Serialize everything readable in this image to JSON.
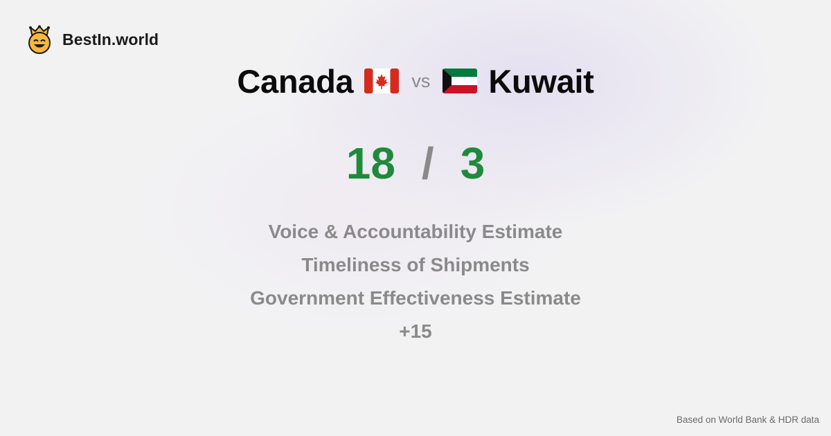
{
  "brand": {
    "name": "BestIn.world",
    "icon": "crown-smiley-icon"
  },
  "comparison": {
    "left_country": "Canada",
    "left_flag": "canada-flag-icon",
    "vs_label": "vs",
    "right_country": "Kuwait",
    "right_flag": "kuwait-flag-icon",
    "left_score": "18",
    "separator": "/",
    "right_score": "3"
  },
  "metrics": [
    "Voice & Accountability Estimate",
    "Timeliness of Shipments",
    "Government Effectiveness Estimate",
    "+15"
  ],
  "footer": {
    "source": "Based on World Bank & HDR data"
  },
  "colors": {
    "score": "#1f8a3c",
    "muted": "#8a8a8a",
    "title": "#0b0b0b"
  }
}
